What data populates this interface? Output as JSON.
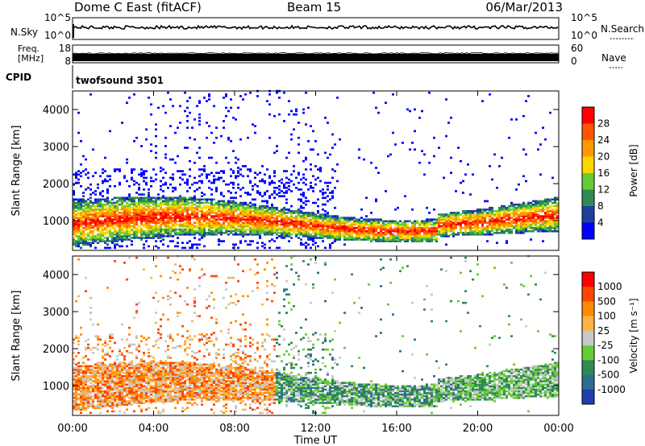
{
  "header": {
    "radar": "Dome C East (fitACF)",
    "beam": "Beam 15",
    "date": "06/Mar/2013"
  },
  "chart_data": [
    {
      "type": "line",
      "panel": "N.Sky / N.Search",
      "left_label": "N.Sky",
      "right_label": "N.Search",
      "left_ticks": [
        "10^5",
        "10^0"
      ],
      "right_ticks": [
        "10^5",
        "10^0"
      ]
    },
    {
      "type": "line",
      "panel": "Freq / Nave",
      "left_label_line1": "Freq.",
      "left_label_line2": "[MHz]",
      "right_label": "Nave",
      "left_ticks": [
        "18",
        "8"
      ],
      "right_ticks": [
        "60",
        "0"
      ],
      "cpid_label": "CPID",
      "cpid_value": "twofsound 3501"
    },
    {
      "type": "heatmap",
      "panel": "Power",
      "ylabel": "Slant Range [km]",
      "ylim": [
        200,
        4500
      ],
      "y_ticks": [
        "1000",
        "2000",
        "3000",
        "4000"
      ],
      "colorbar_label": "Power [dB]",
      "colorbar_ticks": [
        "4",
        "8",
        "12",
        "16",
        "20",
        "24",
        "28"
      ],
      "colorbar_colors": [
        "#0000ff",
        "#1f3f9f",
        "#2e8b57",
        "#66cc33",
        "#ffd700",
        "#ff9900",
        "#ff5500",
        "#ff0000"
      ]
    },
    {
      "type": "heatmap",
      "panel": "Velocity",
      "ylabel": "Slant Range [km]",
      "xlabel": "Time UT",
      "ylim": [
        200,
        4500
      ],
      "y_ticks": [
        "1000",
        "2000",
        "3000",
        "4000"
      ],
      "x_ticks": [
        "00:00",
        "04:00",
        "08:00",
        "12:00",
        "16:00",
        "20:00",
        "00:00"
      ],
      "colorbar_label": "Velocity [m s^-1]",
      "colorbar_ticks": [
        "1000",
        "500",
        "100",
        "25",
        "-25",
        "-100",
        "-500",
        "-1000"
      ],
      "colorbar_colors": [
        "#1f3fb0",
        "#2e6e8e",
        "#2e8b57",
        "#66cc33",
        "#c8c8c8",
        "#ffb347",
        "#ff8c00",
        "#ff4500",
        "#ff0000"
      ]
    }
  ]
}
